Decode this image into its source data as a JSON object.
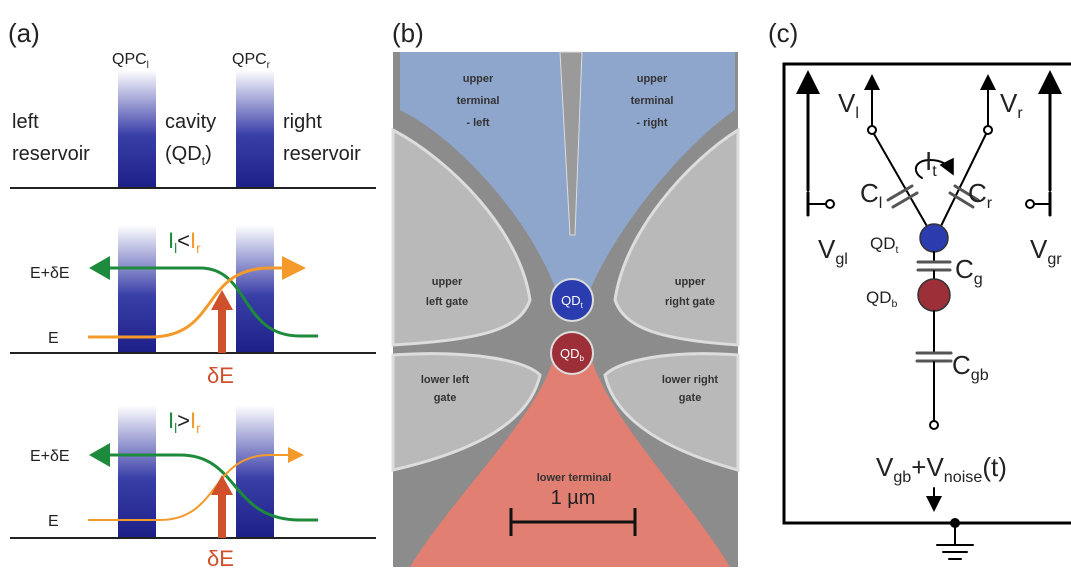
{
  "panel_a": {
    "label": "(a)",
    "qpc_left": {
      "main": "QPC",
      "sub": "l"
    },
    "qpc_right": {
      "main": "QPC",
      "sub": "r"
    },
    "left_reservoir": [
      "left",
      "reservoir"
    ],
    "cavity": "cavity",
    "cavity_qd": {
      "open": "(QD",
      "sub": "t",
      "close": ")"
    },
    "right_reservoir": [
      "right",
      "reservoir"
    ],
    "middle": {
      "left": "I",
      "left_sub": "l",
      "op": "<",
      "right": "I",
      "right_sub": "r",
      "upper_energy": "E+δE",
      "lower_energy": "E",
      "delta": "δE"
    },
    "bottom": {
      "left": "I",
      "left_sub": "l",
      "op": ">",
      "right": "I",
      "right_sub": "r",
      "upper_energy": "E+δE",
      "lower_energy": "E",
      "delta": "δE"
    }
  },
  "panel_b": {
    "label": "(b)",
    "upper_terminal_left": [
      "upper",
      "terminal",
      "- left"
    ],
    "upper_terminal_right": [
      "upper",
      "terminal",
      "- right"
    ],
    "upper_left_gate": [
      "upper",
      "left gate"
    ],
    "upper_right_gate": [
      "upper",
      "right gate"
    ],
    "lower_left_gate": [
      "lower left",
      "gate"
    ],
    "lower_right_gate": [
      "lower right",
      "gate"
    ],
    "lower_terminal": "lower terminal",
    "qd_top": {
      "main": "QD",
      "sub": "t"
    },
    "qd_bottom": {
      "main": "QD",
      "sub": "b"
    },
    "scale": "1 µm"
  },
  "panel_c": {
    "label": "(c)",
    "v_l": {
      "main": "V",
      "sub": "l"
    },
    "v_r": {
      "main": "V",
      "sub": "r"
    },
    "current": {
      "main": "I",
      "sub": "t"
    },
    "c_l": {
      "main": "C",
      "sub": "l"
    },
    "c_r": {
      "main": "C",
      "sub": "r"
    },
    "v_gl": {
      "main": "V",
      "sub": "gl"
    },
    "v_gr": {
      "main": "V",
      "sub": "gr"
    },
    "qd_t": {
      "main": "QD",
      "sub": "t"
    },
    "c_g": {
      "main": "C",
      "sub": "g"
    },
    "qd_b": {
      "main": "QD",
      "sub": "b"
    },
    "c_gb": {
      "main": "C",
      "sub": "gb"
    },
    "source": {
      "v": "V",
      "v_sub": "gb",
      "plus": "+V",
      "noise_sub": "noise",
      "tail": "(t)"
    }
  }
}
